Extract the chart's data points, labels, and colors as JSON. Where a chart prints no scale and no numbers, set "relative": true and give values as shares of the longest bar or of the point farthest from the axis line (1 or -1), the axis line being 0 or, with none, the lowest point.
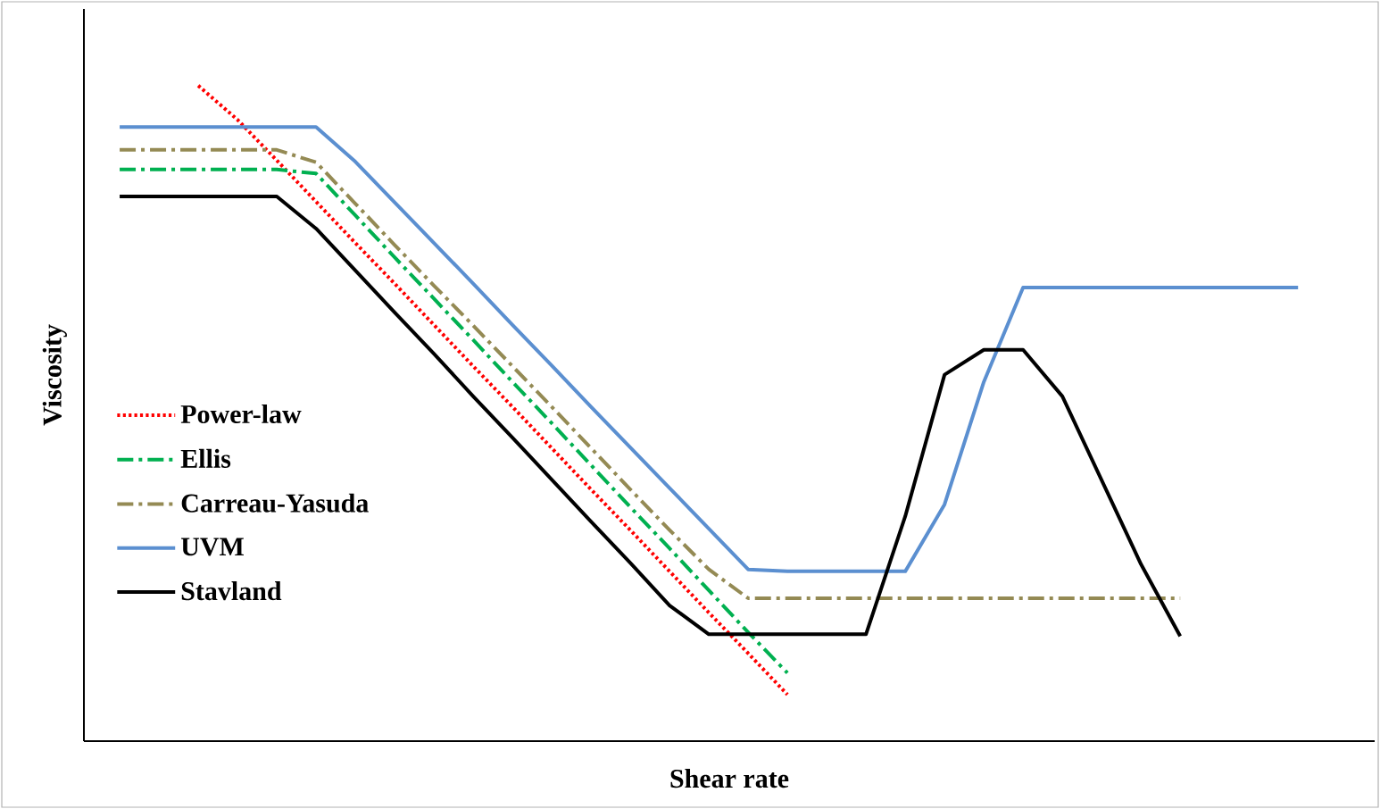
{
  "chart_data": {
    "type": "line",
    "relative": true,
    "xlabel": "Shear rate",
    "ylabel": "Viscosity",
    "legend": "left",
    "marker": "none",
    "categories": [
      null,
      null,
      null,
      null,
      null,
      null,
      null,
      null,
      null,
      null,
      null,
      null,
      null,
      null,
      null,
      null,
      null,
      null,
      null,
      null,
      null,
      null,
      null,
      null,
      null,
      null,
      null,
      null,
      null,
      null,
      null
    ],
    "series": [
      {
        "name": "Power-law",
        "color": "#ff0000",
        "line_style": "dotted",
        "values": [
          null,
          null,
          1.0,
          0.948,
          0.886,
          0.823,
          0.76,
          0.698,
          0.635,
          0.572,
          0.51,
          0.447,
          0.384,
          0.322,
          0.259,
          0.196,
          0.134,
          0.071,
          null,
          null,
          null,
          null,
          null,
          null,
          null,
          null,
          null,
          null,
          null,
          null,
          null
        ]
      },
      {
        "name": "Ellis",
        "color": "#00b050",
        "line_style": "dashdot",
        "values": [
          0.872,
          0.872,
          0.872,
          0.872,
          0.872,
          0.866,
          0.802,
          0.738,
          0.675,
          0.612,
          0.548,
          0.485,
          0.421,
          0.357,
          0.294,
          0.23,
          0.166,
          0.104,
          null,
          null,
          null,
          null,
          null,
          null,
          null,
          null,
          null,
          null,
          null,
          null,
          null
        ]
      },
      {
        "name": "Carreau-Yasuda",
        "color": "#948a54",
        "line_style": "dashdot",
        "values": [
          0.902,
          0.902,
          0.902,
          0.902,
          0.902,
          0.883,
          0.82,
          0.757,
          0.695,
          0.634,
          0.572,
          0.51,
          0.447,
          0.384,
          0.322,
          0.262,
          0.218,
          0.218,
          0.218,
          0.218,
          0.218,
          0.218,
          0.218,
          0.218,
          0.218,
          0.218,
          0.218,
          0.218,
          null,
          null,
          null
        ]
      },
      {
        "name": "UVM",
        "color": "#5b8fd0",
        "line_style": "solid",
        "values": [
          0.937,
          0.937,
          0.937,
          0.937,
          0.937,
          0.937,
          0.884,
          0.822,
          0.76,
          0.698,
          0.635,
          0.573,
          0.51,
          0.448,
          0.386,
          0.324,
          0.262,
          0.259,
          0.259,
          0.259,
          0.259,
          0.361,
          0.548,
          0.692,
          0.692,
          0.692,
          0.692,
          0.692,
          0.692,
          0.692,
          0.692
        ]
      },
      {
        "name": "Stavland",
        "color": "#000000",
        "line_style": "solid",
        "values": [
          0.831,
          0.831,
          0.831,
          0.831,
          0.831,
          0.782,
          0.718,
          0.654,
          0.591,
          0.526,
          0.463,
          0.399,
          0.335,
          0.272,
          0.207,
          0.163,
          0.163,
          0.163,
          0.163,
          0.163,
          0.343,
          0.559,
          0.597,
          0.597,
          0.526,
          0.398,
          0.27,
          0.16,
          null,
          null,
          null
        ]
      }
    ]
  }
}
